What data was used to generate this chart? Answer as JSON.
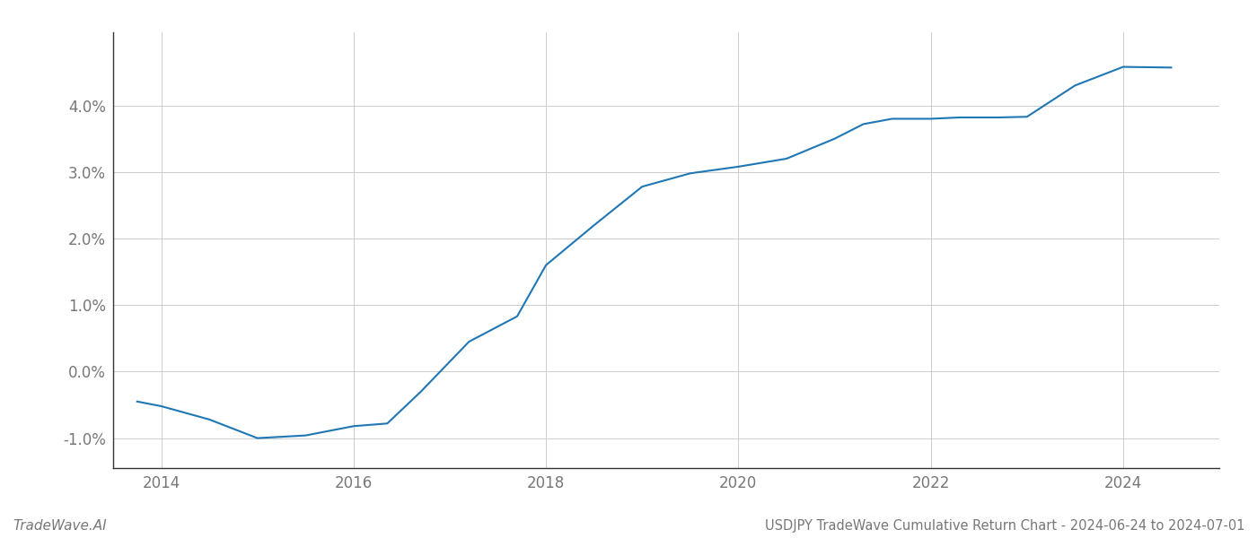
{
  "title": "USDJPY TradeWave Cumulative Return Chart - 2024-06-24 to 2024-07-01",
  "watermark": "TradeWave.AI",
  "line_color": "#1f77b4",
  "background_color": "#ffffff",
  "grid_color": "#cccccc",
  "x_values": [
    2013.75,
    2014.0,
    2014.5,
    2015.0,
    2015.5,
    2016.0,
    2016.35,
    2016.7,
    2017.2,
    2017.7,
    2018.0,
    2018.5,
    2019.0,
    2019.5,
    2020.0,
    2020.5,
    2021.0,
    2021.3,
    2021.6,
    2022.0,
    2022.3,
    2022.7,
    2023.0,
    2023.5,
    2024.0,
    2024.5
  ],
  "y_values": [
    -0.45,
    -0.52,
    -0.72,
    -1.0,
    -0.96,
    -0.82,
    -0.78,
    -0.3,
    0.45,
    0.83,
    1.6,
    2.2,
    2.78,
    2.98,
    3.08,
    3.2,
    3.5,
    3.72,
    3.8,
    3.8,
    3.82,
    3.82,
    3.83,
    4.3,
    4.58,
    4.57
  ],
  "xlim": [
    2013.5,
    2025.0
  ],
  "ylim": [
    -1.45,
    5.1
  ],
  "yticks": [
    -1.0,
    0.0,
    1.0,
    2.0,
    3.0,
    4.0
  ],
  "xticks": [
    2014,
    2016,
    2018,
    2020,
    2022,
    2024
  ],
  "line_width": 1.5,
  "title_fontsize": 10.5,
  "tick_fontsize": 12,
  "watermark_fontsize": 11,
  "axis_label_color": "#777777",
  "spine_color": "#333333"
}
